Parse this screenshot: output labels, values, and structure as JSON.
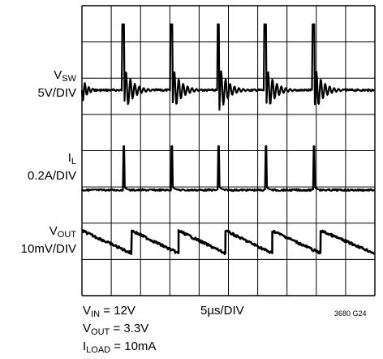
{
  "chart_data": {
    "type": "line",
    "traces": [
      {
        "name": "VSW",
        "name_main": "V",
        "name_sub": "SW",
        "scale": "5V/DIV"
      },
      {
        "name": "IL",
        "name_main": "I",
        "name_sub": "L",
        "scale": "0.2A/DIV"
      },
      {
        "name": "VOUT",
        "name_main": "V",
        "name_sub": "OUT",
        "scale": "10mV/DIV"
      }
    ],
    "grid": {
      "horizontal_divisions": 10,
      "vertical_divisions": 8
    },
    "timebase": "5µs/DIV",
    "conditions": [
      {
        "main": "V",
        "sub": "IN",
        "rest": " = 12V"
      },
      {
        "main": "V",
        "sub": "OUT",
        "rest": " = 3.3V"
      },
      {
        "main": "I",
        "sub": "LOAD",
        "rest": " = 10mA"
      }
    ],
    "figure_id": "3680 G24",
    "switching_edges_div": [
      1.4,
      3.05,
      4.65,
      6.25,
      7.9
    ],
    "vout_ramp_start_div": [
      0.0,
      1.7,
      3.3,
      4.9,
      6.5,
      8.15
    ]
  },
  "colors": {
    "trace": "#000000",
    "grid": "#000000",
    "background": "#ffffff"
  }
}
